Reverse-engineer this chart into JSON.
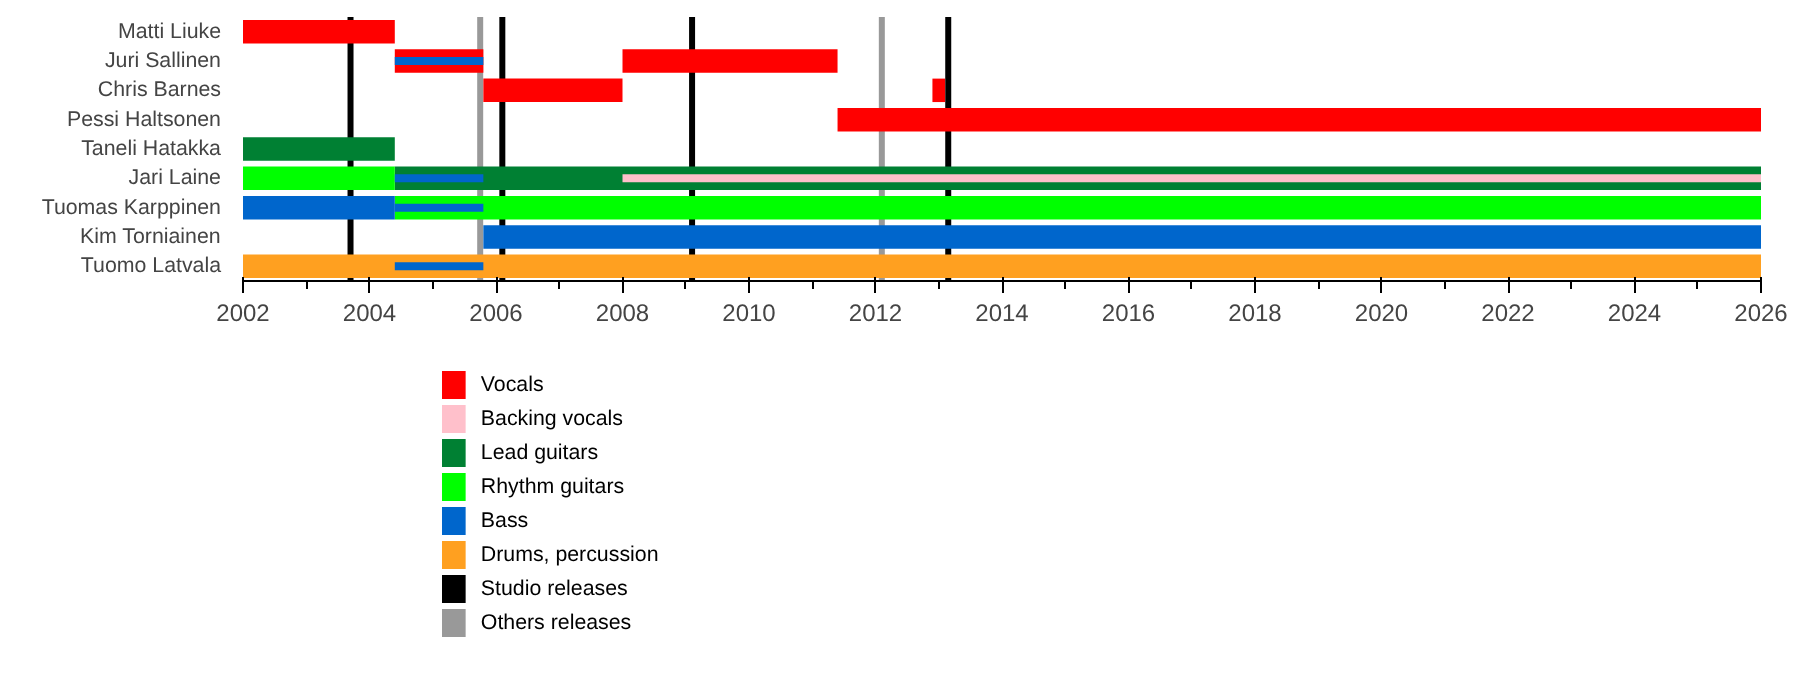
{
  "chart_data": {
    "type": "bar",
    "orientation": "horizontal",
    "categories": [
      "Matti Liuke",
      "Juri Sallinen",
      "Chris Barnes",
      "Pessi Haltsonen",
      "Taneli Hatakka",
      "Jari Laine",
      "Tuomas Karppinen",
      "Kim Torniainen",
      "Tuomo Latvala"
    ],
    "series": [
      {
        "name": "Vocals",
        "color": "#ff0000",
        "base": [
          2002,
          2004.4,
          2005.8,
          2011.4,
          null,
          null,
          null,
          null,
          null
        ],
        "values": [
          2.4,
          1.4,
          2.2,
          14.6,
          null,
          null,
          null,
          null,
          null
        ]
      },
      {
        "color": "#ff0000",
        "base": [
          null,
          2008,
          2012.9,
          null,
          null,
          null,
          null,
          null,
          null
        ],
        "values": [
          null,
          3.4,
          0.2,
          null,
          null,
          null,
          null,
          null,
          null
        ]
      },
      {
        "name": "Backing vocals",
        "color": "#ffc0cb",
        "base": [
          null,
          null,
          null,
          null,
          null,
          2008,
          null,
          null,
          null
        ],
        "values": [
          null,
          null,
          null,
          null,
          null,
          18,
          null,
          null,
          null
        ]
      },
      {
        "name": "Lead guitars",
        "color": "#008033",
        "base": [
          null,
          null,
          null,
          null,
          2002,
          2004.4,
          null,
          null,
          null
        ],
        "values": [
          null,
          null,
          null,
          null,
          2.4,
          21.6,
          null,
          null,
          null
        ]
      },
      {
        "name": "Rhythm guitars",
        "color": "#00ff00",
        "base": [
          null,
          null,
          null,
          null,
          null,
          2002,
          2004.4,
          null,
          null
        ],
        "values": [
          null,
          null,
          null,
          null,
          null,
          2.4,
          21.6,
          null,
          null
        ]
      },
      {
        "name": "Bass",
        "color": "#0066cc",
        "base": [
          null,
          null,
          null,
          null,
          null,
          null,
          2002,
          2005.8,
          null
        ],
        "values": [
          null,
          null,
          null,
          null,
          null,
          null,
          2.4,
          20.2,
          null
        ]
      },
      {
        "name": "Drums, percussion",
        "color": "#ffa020",
        "base": [
          null,
          null,
          null,
          null,
          null,
          null,
          null,
          null,
          2002
        ],
        "values": [
          null,
          null,
          null,
          null,
          null,
          null,
          null,
          null,
          24
        ]
      },
      {
        "color": "#0066cc",
        "base": [
          null,
          2004.4,
          null,
          null,
          null,
          2004.4,
          2004.4,
          null,
          2004.4
        ],
        "values": [
          null,
          1.4,
          null,
          null,
          null,
          1.4,
          1.4,
          null,
          1.4
        ]
      }
    ],
    "ref_lines": [
      {
        "axis": "x",
        "value": 2003.7,
        "label": "Studio releases",
        "color": "#000000"
      },
      {
        "axis": "x",
        "value": 2006.1,
        "label": null,
        "color": "#000000"
      },
      {
        "axis": "x",
        "value": 2009.1,
        "label": null,
        "color": "#000000"
      },
      {
        "axis": "x",
        "value": 2013.15,
        "label": null,
        "color": "#000000"
      },
      {
        "axis": "x",
        "value": 2005.75,
        "label": "Others releases",
        "color": "#999999"
      },
      {
        "axis": "x",
        "value": 2012.1,
        "label": null,
        "color": "#999999"
      }
    ],
    "xlim": [
      2002,
      2026
    ],
    "xticks": [
      2002,
      2004,
      2006,
      2008,
      2010,
      2012,
      2014,
      2016,
      2018,
      2020,
      2022,
      2024,
      2026
    ],
    "grid": false,
    "legend": "bottom left"
  }
}
